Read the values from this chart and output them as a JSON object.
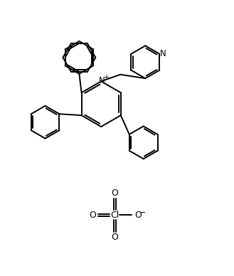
{
  "bg_color": "#ffffff",
  "line_color": "#000000",
  "lw": 1.4,
  "figsize": [
    3.29,
    3.88
  ],
  "dpi": 100,
  "xlim": [
    0,
    10
  ],
  "ylim": [
    0,
    12
  ]
}
